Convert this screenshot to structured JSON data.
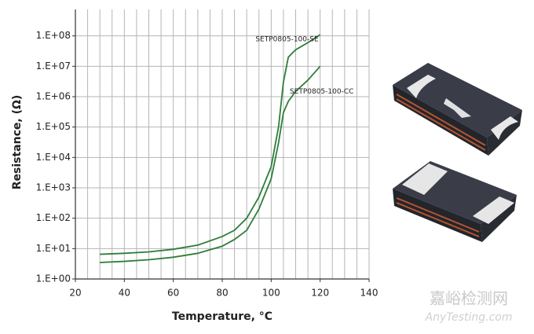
{
  "chart_data": {
    "type": "line",
    "y_label": "Resistance, (Ω)",
    "x_label": "Temperature, °C",
    "x": [
      30,
      40,
      50,
      60,
      70,
      80,
      85,
      90,
      95,
      100,
      103,
      105,
      107,
      110,
      115,
      120
    ],
    "series": [
      {
        "name": "SETP0805-100-SE",
        "color": "#2e7d3a",
        "values": [
          6.5,
          7,
          7.8,
          9.5,
          13,
          25,
          40,
          100,
          500,
          5000,
          100000,
          3000000,
          20000000,
          35000000,
          60000000,
          110000000
        ]
      },
      {
        "name": "SETP0805-100-CC",
        "color": "#2e7d3a",
        "values": [
          3.5,
          3.8,
          4.3,
          5.2,
          7,
          12,
          20,
          40,
          200,
          2000,
          30000,
          300000,
          700000,
          1500000,
          3500000,
          10000000
        ]
      }
    ],
    "xlim": [
      20,
      140
    ],
    "xticks": [
      20,
      40,
      60,
      80,
      100,
      120,
      140
    ],
    "x_minor_ticks": [
      25,
      30,
      35,
      45,
      50,
      55,
      65,
      70,
      75,
      85,
      90,
      95,
      105,
      110,
      115,
      125,
      130,
      135
    ],
    "ylim": [
      1,
      1000000000
    ],
    "yscale": "log",
    "yticks": [
      {
        "value": 1,
        "label": "1.E+00"
      },
      {
        "value": 10,
        "label": "1.E+01"
      },
      {
        "value": 100,
        "label": "1.E+02"
      },
      {
        "value": 1000,
        "label": "1.E+03"
      },
      {
        "value": 10000,
        "label": "1.E+04"
      },
      {
        "value": 100000,
        "label": "1.E+05"
      },
      {
        "value": 1000000,
        "label": "1.E+06"
      },
      {
        "value": 10000000,
        "label": "1.E+07"
      },
      {
        "value": 100000000,
        "label": "1.E+08"
      }
    ],
    "grid": true
  },
  "watermark": {
    "cn": "嘉峪检测网",
    "en": "AnyTesting.com"
  }
}
